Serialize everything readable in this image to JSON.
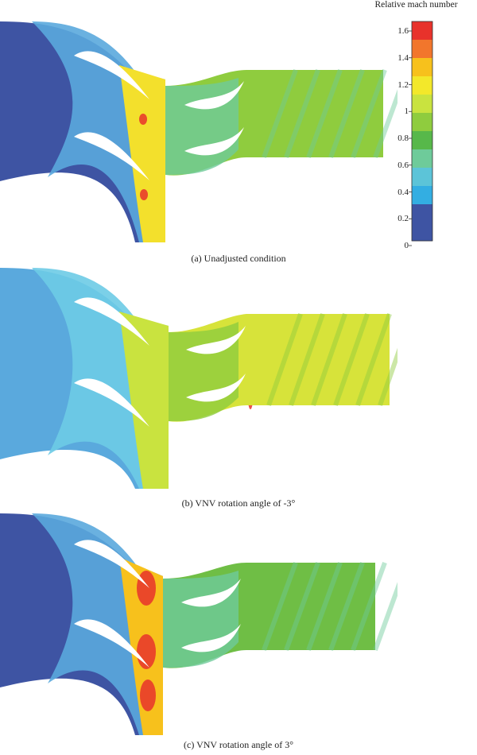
{
  "legend": {
    "title": "Relative mach number",
    "ticks": [
      "1.6",
      "1.4",
      "1.2",
      "1",
      "0.8",
      "0.6",
      "0.4",
      "0.2",
      "0"
    ],
    "colors": [
      "#e8322b",
      "#f2762c",
      "#f7c11c",
      "#f3e82a",
      "#c9e33f",
      "#8fcc3e",
      "#57b84a",
      "#6ecb9a",
      "#5cc4d8",
      "#33aee2",
      "#3e54a3"
    ]
  },
  "panels": [
    {
      "caption": "(a) Unadjusted condition",
      "inlet": "#3e54a3",
      "inlet_band": "#5aa9dd",
      "stator": "#f3e02c",
      "hot": "#e8322b",
      "outlet": "#8fcc3e",
      "mid": "#6ecb9a"
    },
    {
      "caption": "(b) VNV rotation angle of -3°",
      "inlet": "#5aa9dd",
      "inlet_band": "#6dcbe6",
      "stator": "#c9e33f",
      "hot": "#e8322b",
      "outlet": "#d7e33a",
      "mid": "#8fcc3e"
    },
    {
      "caption": "(c) VNV rotation angle of 3°",
      "inlet": "#3e54a3",
      "inlet_band": "#5aa9dd",
      "stator": "#f7c11c",
      "hot": "#e8322b",
      "outlet": "#6fbe45",
      "mid": "#6ecb9a"
    }
  ]
}
